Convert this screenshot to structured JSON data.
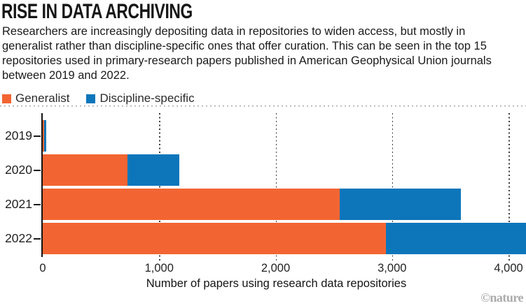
{
  "title": "RISE IN DATA ARCHIVING",
  "subtitle": "Researchers are increasingly depositing data in repositories to widen access, but mostly in generalist rather than discipline-specific ones that offer curation. This can be seen in the top 15 repositories used in primary-research papers published in American Geophysical Union journals between 2019 and 2022.",
  "legend": [
    {
      "label": "Generalist",
      "color": "#F26532"
    },
    {
      "label": "Discipline-specific",
      "color": "#0D76BA"
    }
  ],
  "chart_data": {
    "type": "bar",
    "orientation": "horizontal",
    "stacked": true,
    "categories": [
      "2019",
      "2020",
      "2021",
      "2022"
    ],
    "series": [
      {
        "name": "Generalist",
        "color": "#F26532",
        "values": [
          10,
          730,
          2550,
          2950
        ]
      },
      {
        "name": "Discipline-specific",
        "color": "#0D76BA",
        "values": [
          20,
          440,
          1040,
          1210
        ]
      }
    ],
    "totals": [
      30,
      1170,
      3590,
      4160
    ],
    "xlabel": "Number of papers using research data repositories",
    "xticks": [
      0,
      1000,
      2000,
      3000,
      4000
    ],
    "xtick_labels": [
      "0",
      "1,000",
      "2,000",
      "3,000",
      "4,000"
    ],
    "xlim": [
      0,
      4150
    ],
    "grid": "dotted-vertical",
    "legend_position": "top-left"
  },
  "credit": "©nature",
  "colors": {
    "generalist": "#F26532",
    "discipline_specific": "#0D76BA",
    "axis": "#141414",
    "text": "#191919",
    "credit": "#ABABAB"
  }
}
